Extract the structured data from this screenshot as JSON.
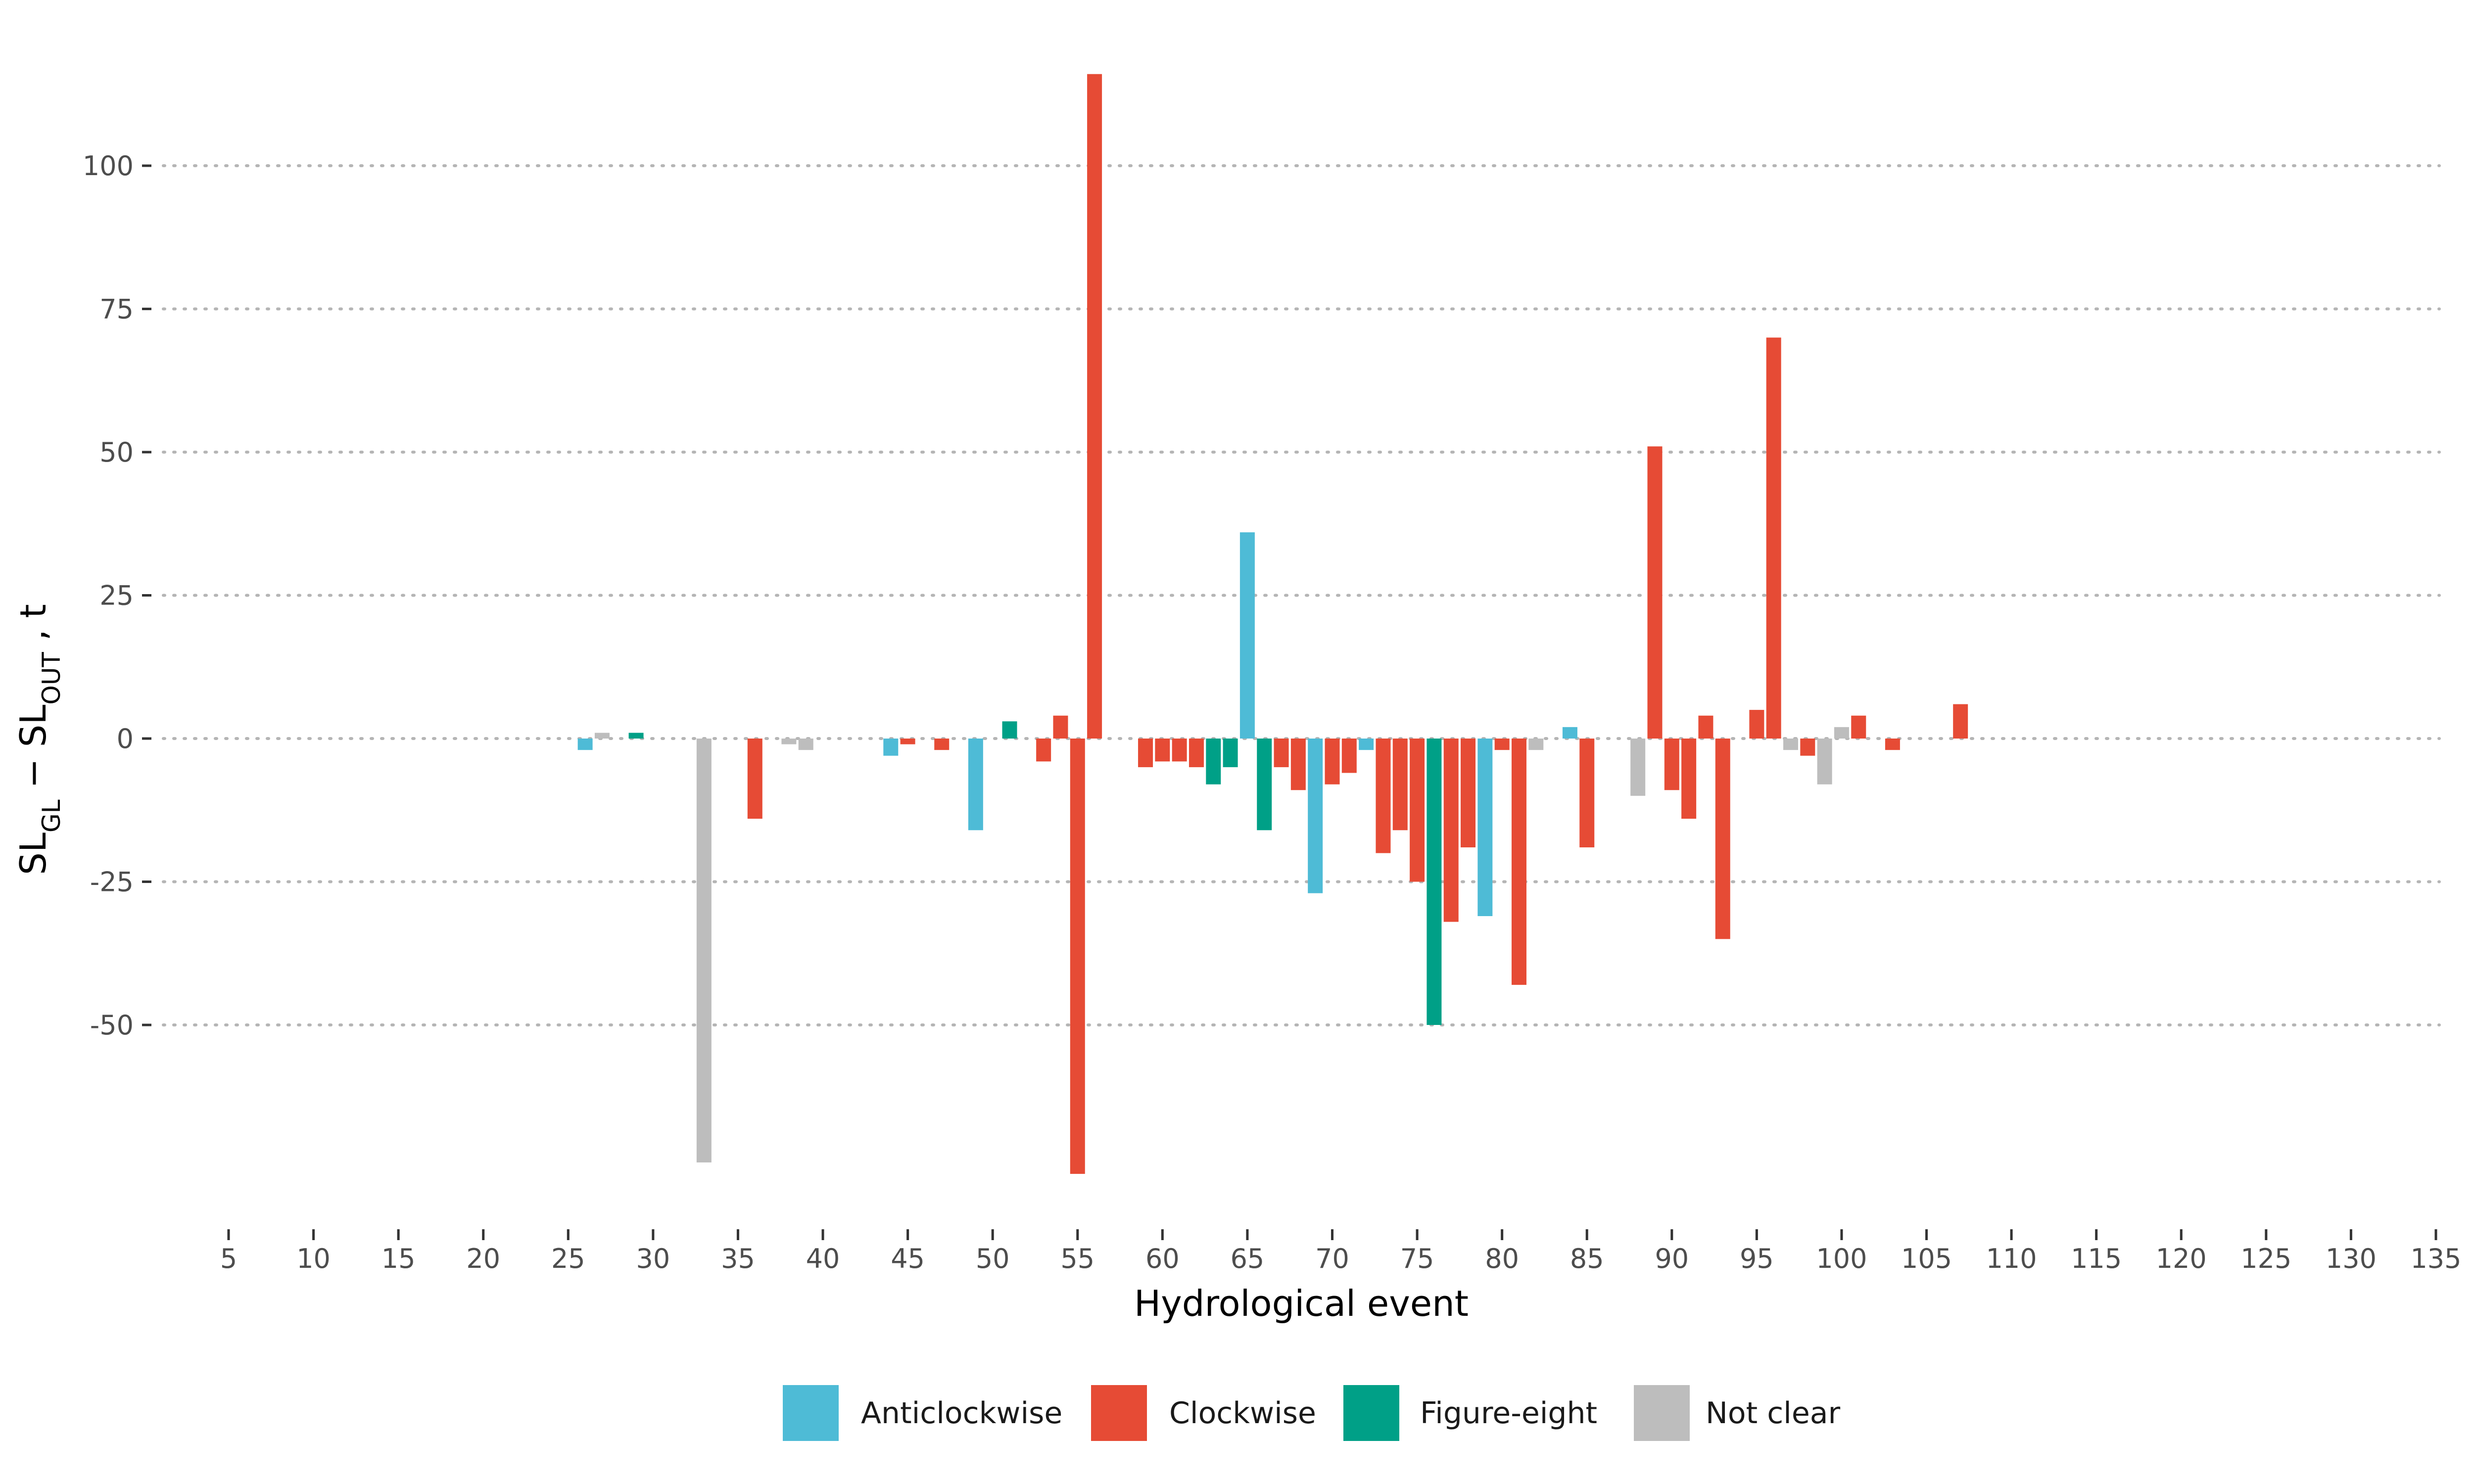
{
  "chart_data": {
    "type": "bar",
    "title": "",
    "xlabel": "Hydrological event",
    "ylabel": {
      "base1": "SL",
      "sub1": "GL",
      "op": " − ",
      "base2": "SL",
      "sub2": "OUT",
      "unit": " , t"
    },
    "x_ticks": [
      5,
      10,
      15,
      20,
      25,
      30,
      35,
      40,
      45,
      50,
      55,
      60,
      65,
      70,
      75,
      80,
      85,
      90,
      95,
      100,
      105,
      110,
      115,
      120,
      125,
      130,
      135
    ],
    "y_ticks": [
      -50,
      -25,
      0,
      25,
      50,
      75,
      100
    ],
    "xlim": [
      3,
      136
    ],
    "ylim": [
      -80,
      120
    ],
    "grid": "horizontal-dotted",
    "legend_position": "bottom",
    "series": [
      {
        "name": "Anticlockwise",
        "color": "#4EBBD6"
      },
      {
        "name": "Clockwise",
        "color": "#E64B35"
      },
      {
        "name": "Figure-eight",
        "color": "#00A087"
      },
      {
        "name": "Not clear",
        "color": "#BDBDBD"
      }
    ],
    "bars": [
      {
        "x": 26,
        "y": -2,
        "series": "Anticlockwise"
      },
      {
        "x": 27,
        "y": 1,
        "series": "Not clear"
      },
      {
        "x": 29,
        "y": 1,
        "series": "Figure-eight"
      },
      {
        "x": 33,
        "y": -74,
        "series": "Not clear"
      },
      {
        "x": 36,
        "y": -14,
        "series": "Clockwise"
      },
      {
        "x": 38,
        "y": -1,
        "series": "Not clear"
      },
      {
        "x": 39,
        "y": -2,
        "series": "Not clear"
      },
      {
        "x": 44,
        "y": -3,
        "series": "Anticlockwise"
      },
      {
        "x": 45,
        "y": -1,
        "series": "Clockwise"
      },
      {
        "x": 47,
        "y": -2,
        "series": "Clockwise"
      },
      {
        "x": 49,
        "y": -16,
        "series": "Anticlockwise"
      },
      {
        "x": 51,
        "y": 3,
        "series": "Figure-eight"
      },
      {
        "x": 53,
        "y": -4,
        "series": "Clockwise"
      },
      {
        "x": 54,
        "y": 4,
        "series": "Clockwise"
      },
      {
        "x": 55,
        "y": -76,
        "series": "Clockwise"
      },
      {
        "x": 56,
        "y": 116,
        "series": "Clockwise"
      },
      {
        "x": 59,
        "y": -5,
        "series": "Clockwise"
      },
      {
        "x": 60,
        "y": -4,
        "series": "Clockwise"
      },
      {
        "x": 61,
        "y": -4,
        "series": "Clockwise"
      },
      {
        "x": 62,
        "y": -5,
        "series": "Clockwise"
      },
      {
        "x": 63,
        "y": -8,
        "series": "Figure-eight"
      },
      {
        "x": 64,
        "y": -5,
        "series": "Figure-eight"
      },
      {
        "x": 65,
        "y": 36,
        "series": "Anticlockwise"
      },
      {
        "x": 66,
        "y": -16,
        "series": "Figure-eight"
      },
      {
        "x": 67,
        "y": -5,
        "series": "Clockwise"
      },
      {
        "x": 68,
        "y": -9,
        "series": "Clockwise"
      },
      {
        "x": 69,
        "y": -27,
        "series": "Anticlockwise"
      },
      {
        "x": 70,
        "y": -8,
        "series": "Clockwise"
      },
      {
        "x": 71,
        "y": -6,
        "series": "Clockwise"
      },
      {
        "x": 72,
        "y": -2,
        "series": "Anticlockwise"
      },
      {
        "x": 73,
        "y": -20,
        "series": "Clockwise"
      },
      {
        "x": 74,
        "y": -16,
        "series": "Clockwise"
      },
      {
        "x": 75,
        "y": -25,
        "series": "Clockwise"
      },
      {
        "x": 76,
        "y": -50,
        "series": "Figure-eight"
      },
      {
        "x": 77,
        "y": -32,
        "series": "Clockwise"
      },
      {
        "x": 78,
        "y": -19,
        "series": "Clockwise"
      },
      {
        "x": 79,
        "y": -31,
        "series": "Anticlockwise"
      },
      {
        "x": 80,
        "y": -2,
        "series": "Clockwise"
      },
      {
        "x": 81,
        "y": -43,
        "series": "Clockwise"
      },
      {
        "x": 82,
        "y": -2,
        "series": "Not clear"
      },
      {
        "x": 84,
        "y": 2,
        "series": "Anticlockwise"
      },
      {
        "x": 85,
        "y": -19,
        "series": "Clockwise"
      },
      {
        "x": 88,
        "y": -10,
        "series": "Not clear"
      },
      {
        "x": 89,
        "y": 51,
        "series": "Clockwise"
      },
      {
        "x": 90,
        "y": -9,
        "series": "Clockwise"
      },
      {
        "x": 91,
        "y": -14,
        "series": "Clockwise"
      },
      {
        "x": 92,
        "y": 4,
        "series": "Clockwise"
      },
      {
        "x": 93,
        "y": -35,
        "series": "Clockwise"
      },
      {
        "x": 95,
        "y": 5,
        "series": "Clockwise"
      },
      {
        "x": 96,
        "y": 70,
        "series": "Clockwise"
      },
      {
        "x": 97,
        "y": -2,
        "series": "Not clear"
      },
      {
        "x": 98,
        "y": -3,
        "series": "Clockwise"
      },
      {
        "x": 99,
        "y": -8,
        "series": "Not clear"
      },
      {
        "x": 100,
        "y": 2,
        "series": "Not clear"
      },
      {
        "x": 101,
        "y": 4,
        "series": "Clockwise"
      },
      {
        "x": 103,
        "y": -2,
        "series": "Clockwise"
      },
      {
        "x": 107,
        "y": 6,
        "series": "Clockwise"
      }
    ]
  }
}
